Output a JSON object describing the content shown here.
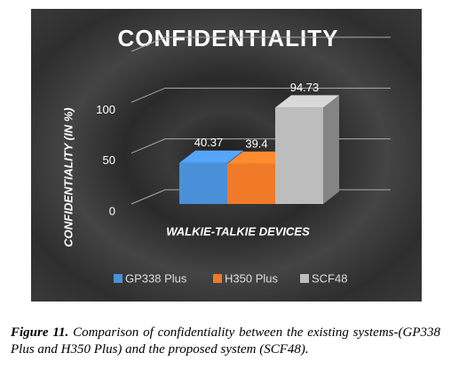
{
  "chart_data": {
    "type": "bar3d",
    "title": "CONFIDENTIALITY",
    "y_label": "CONFIDENTIALITY (IN %)",
    "x_label": "WALKIE-TALKIE DEVICES",
    "categories": [
      null
    ],
    "series": [
      {
        "name": "GP338 Plus",
        "color": "#4a90d9",
        "values": [
          40.37
        ]
      },
      {
        "name": "H350 Plus",
        "color": "#f07a28",
        "values": [
          39.4
        ]
      },
      {
        "name": "SCF48",
        "color": "#bdbdbd",
        "values": [
          94.73
        ]
      }
    ],
    "ylim": [
      0,
      150
    ],
    "yticks": [
      0,
      50,
      100
    ],
    "grid": true,
    "legend": "bottom"
  },
  "caption": {
    "label": "Figure 11.",
    "text": "Comparison of confidentiality between the existing systems-(GP338 Plus and H350 Plus) and the proposed system (SCF48)."
  }
}
